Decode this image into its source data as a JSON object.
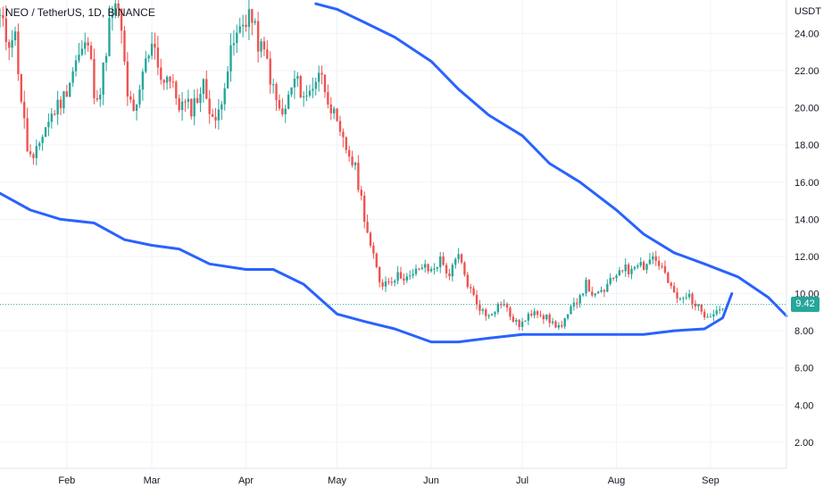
{
  "header": {
    "symbol_title": "NEO / TetherUS, 1D, BINANCE"
  },
  "price_axis": {
    "unit_label": "USDT"
  },
  "last_price": {
    "label": "9.42",
    "value": 9.42
  },
  "colors": {
    "up": "#26a69a",
    "down": "#ef5350",
    "envelope": "#2962ff",
    "last_price_line": "#26a69a",
    "grid": "#f0f3fa",
    "axis_text": "#131722"
  },
  "chart_data": {
    "type": "candlestick",
    "title": "NEO / TetherUS, 1D, BINANCE",
    "ylabel": "USDT",
    "ylim": [
      0.6,
      25.8
    ],
    "y_ticks": [
      "2.00",
      "4.00",
      "6.00",
      "8.00",
      "10.00",
      "12.00",
      "14.00",
      "16.00",
      "18.00",
      "20.00",
      "22.00",
      "24.00"
    ],
    "y_tick_values": [
      2,
      4,
      6,
      8,
      10,
      12,
      14,
      16,
      18,
      20,
      22,
      24
    ],
    "x_ticks": [
      "Feb",
      "Mar",
      "Apr",
      "May",
      "Jun",
      "Jul",
      "Aug",
      "Sep"
    ],
    "x_tick_dates": [
      "2021-02-01",
      "2021-03-01",
      "2021-04-01",
      "2021-05-01",
      "2021-06-01",
      "2021-07-01",
      "2021-08-01",
      "2021-09-01"
    ],
    "x_range": [
      "2021-01-10",
      "2021-09-26"
    ],
    "grid": true,
    "series": [
      {
        "name": "",
        "kind": "candles",
        "segments": [
          {
            "start": "2021-01-10",
            "end": "2021-01-15",
            "points": [
              24.8,
              24.2,
              23.5,
              24.0,
              23.8
            ]
          },
          {
            "start": "2021-01-15",
            "end": "2021-01-21",
            "points": [
              23.8,
              20.5,
              17.8,
              17.0
            ]
          },
          {
            "start": "2021-01-21",
            "end": "2021-01-31",
            "points": [
              17.0,
              18.8,
              19.8,
              20.6
            ]
          },
          {
            "start": "2021-01-31",
            "end": "2021-02-08",
            "points": [
              20.6,
              22.5,
              23.5
            ]
          },
          {
            "start": "2021-02-08",
            "end": "2021-02-12",
            "points": [
              23.5,
              21.0,
              20.8
            ]
          },
          {
            "start": "2021-02-12",
            "end": "2021-02-18",
            "points": [
              20.8,
              24.5,
              25.5
            ]
          },
          {
            "start": "2021-02-18",
            "end": "2021-02-24",
            "points": [
              25.5,
              20.5,
              19.8
            ]
          },
          {
            "start": "2021-02-24",
            "end": "2021-03-02",
            "points": [
              19.8,
              22.5,
              23.5
            ]
          },
          {
            "start": "2021-03-02",
            "end": "2021-03-06",
            "points": [
              23.5,
              21.5,
              21.8
            ]
          },
          {
            "start": "2021-03-06",
            "end": "2021-03-14",
            "points": [
              21.8,
              20.2,
              20.0
            ]
          },
          {
            "start": "2021-03-14",
            "end": "2021-03-22",
            "points": [
              20.0,
              21.2,
              19.0
            ]
          },
          {
            "start": "2021-03-22",
            "end": "2021-03-31",
            "points": [
              19.0,
              21.5,
              23.5,
              24.5
            ]
          },
          {
            "start": "2021-03-31",
            "end": "2021-04-02",
            "points": [
              24.5,
              25.2
            ]
          },
          {
            "start": "2021-04-02",
            "end": "2021-04-08",
            "points": [
              25.2,
              23.5,
              22.5
            ]
          },
          {
            "start": "2021-04-08",
            "end": "2021-04-13",
            "points": [
              22.5,
              20.5,
              19.5
            ]
          },
          {
            "start": "2021-04-13",
            "end": "2021-04-25",
            "points": [
              19.5,
              21.5,
              20.5,
              22.0
            ]
          },
          {
            "start": "2021-04-25",
            "end": "2021-05-05",
            "points": [
              22.0,
              20.5,
              18.5,
              17.5
            ]
          },
          {
            "start": "2021-05-05",
            "end": "2021-05-12",
            "points": [
              17.5,
              16.5,
              14.5,
              12.5
            ]
          },
          {
            "start": "2021-05-12",
            "end": "2021-05-22",
            "points": [
              12.5,
              10.5,
              10.8,
              11.0
            ]
          },
          {
            "start": "2021-05-22",
            "end": "2021-06-04",
            "points": [
              11.0,
              10.8,
              11.5,
              11.2,
              11.8
            ]
          },
          {
            "start": "2021-06-04",
            "end": "2021-06-10",
            "points": [
              11.8,
              11.0,
              12.0
            ]
          },
          {
            "start": "2021-06-10",
            "end": "2021-06-16",
            "points": [
              12.0,
              10.5,
              9.5
            ]
          },
          {
            "start": "2021-06-16",
            "end": "2021-06-22",
            "points": [
              9.5,
              8.8,
              9.2
            ]
          },
          {
            "start": "2021-06-22",
            "end": "2021-07-02",
            "points": [
              9.2,
              9.6,
              8.8,
              8.3,
              8.5
            ]
          },
          {
            "start": "2021-07-02",
            "end": "2021-07-08",
            "points": [
              8.5,
              9.2,
              8.8
            ]
          },
          {
            "start": "2021-07-08",
            "end": "2021-07-14",
            "points": [
              8.8,
              8.4,
              8.2
            ]
          },
          {
            "start": "2021-07-14",
            "end": "2021-07-22",
            "points": [
              8.2,
              9.0,
              9.8,
              10.5
            ]
          },
          {
            "start": "2021-07-22",
            "end": "2021-07-31",
            "points": [
              10.5,
              9.8,
              10.2,
              10.8
            ]
          },
          {
            "start": "2021-07-31",
            "end": "2021-08-10",
            "points": [
              10.8,
              11.5,
              11.2,
              11.8,
              11.5
            ]
          },
          {
            "start": "2021-08-10",
            "end": "2021-08-16",
            "points": [
              11.5,
              12.0,
              11.4
            ]
          },
          {
            "start": "2021-08-16",
            "end": "2021-08-22",
            "points": [
              11.4,
              10.2,
              9.6
            ]
          },
          {
            "start": "2021-08-22",
            "end": "2021-08-28",
            "points": [
              9.6,
              9.9,
              9.2
            ]
          },
          {
            "start": "2021-08-28",
            "end": "2021-09-04",
            "points": [
              9.2,
              8.9,
              9.0,
              9.2
            ]
          },
          {
            "start": "2021-09-04",
            "end": "2021-09-06",
            "points": [
              9.2,
              9.42
            ]
          }
        ]
      },
      {
        "name": "",
        "kind": "line",
        "x": [
          "2021-01-10",
          "2021-01-20",
          "2021-01-30",
          "2021-02-10",
          "2021-02-20",
          "2021-03-01",
          "2021-03-10",
          "2021-03-20",
          "2021-04-01",
          "2021-04-10",
          "2021-04-20",
          "2021-05-01",
          "2021-05-10",
          "2021-05-20",
          "2021-06-01",
          "2021-06-10",
          "2021-06-20",
          "2021-07-01",
          "2021-07-10",
          "2021-07-20",
          "2021-08-01",
          "2021-08-10",
          "2021-08-20",
          "2021-08-30",
          "2021-09-05",
          "2021-09-08"
        ],
        "y": [
          15.4,
          14.5,
          14.0,
          13.8,
          12.9,
          12.6,
          12.4,
          11.6,
          11.3,
          11.3,
          10.5,
          8.9,
          8.5,
          8.1,
          7.4,
          7.4,
          7.6,
          7.8,
          7.8,
          7.8,
          7.8,
          7.8,
          8.0,
          8.1,
          8.7,
          10.0
        ]
      },
      {
        "name": "",
        "kind": "line",
        "x": [
          "2021-04-24",
          "2021-05-01",
          "2021-05-10",
          "2021-05-20",
          "2021-06-01",
          "2021-06-10",
          "2021-06-20",
          "2021-07-01",
          "2021-07-10",
          "2021-07-20",
          "2021-08-01",
          "2021-08-10",
          "2021-08-20",
          "2021-08-30",
          "2021-09-10",
          "2021-09-20",
          "2021-09-26"
        ],
        "y": [
          25.6,
          25.3,
          24.6,
          23.8,
          22.5,
          21.0,
          19.6,
          18.5,
          17.0,
          16.0,
          14.5,
          13.2,
          12.2,
          11.6,
          10.9,
          9.8,
          8.8
        ]
      }
    ],
    "last_price": 9.42
  }
}
